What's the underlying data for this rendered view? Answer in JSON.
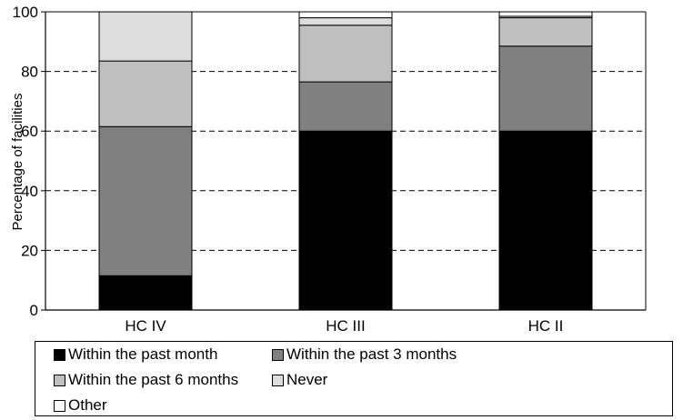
{
  "chart_data": {
    "type": "bar",
    "stacked": true,
    "categories": [
      "HC IV",
      "HC III",
      "HC II"
    ],
    "ylabel": "Percentage of facilities",
    "xlabel": "",
    "ylim": [
      0,
      100
    ],
    "yticks": [
      0,
      20,
      40,
      60,
      80,
      100
    ],
    "grid": "dashed horizontal",
    "legend_position": "bottom",
    "series": [
      {
        "name": "Within the past month",
        "color": "#000000",
        "values": [
          11.5,
          60.0,
          60.0
        ]
      },
      {
        "name": "Within the past 3 months",
        "color": "#808080",
        "values": [
          50.0,
          16.5,
          28.5
        ]
      },
      {
        "name": "Within the past 6 months",
        "color": "#c0c0c0",
        "values": [
          22.0,
          19.0,
          9.5
        ]
      },
      {
        "name": "Never",
        "color": "#dddddd",
        "values": [
          16.5,
          2.5,
          0.5
        ]
      },
      {
        "name": "Other",
        "color": "#ffffff",
        "values": [
          0.0,
          2.0,
          1.5
        ]
      }
    ]
  }
}
